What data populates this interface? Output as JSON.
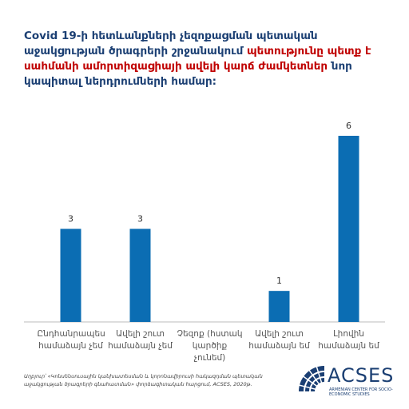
{
  "chart_data": {
    "type": "bar",
    "title": [
      {
        "text": "Covid 19-ի հետևանքների չեզոքացման պետական աջակցության ծրագրերի շրջանակում",
        "color": "#1b3f73"
      },
      {
        "text": "պետությունը պետք է սահմանի ամորտիզացիայի ավելի կարճ ժամկետներ",
        "color": "#c00000"
      },
      {
        "text": "նոր կապիտալ ներդրումների համար:",
        "color": "#1b3f73"
      }
    ],
    "categories": [
      "Ընդհանրապես համաձայն չեմ",
      "Ավելի շուտ համաձայն չեմ",
      "Չեզոք (հստակ կարծիք չունեմ)",
      "Ավելի շուտ համաձայն եմ",
      "Լիովին համաձայն եմ"
    ],
    "values": [
      3,
      3,
      0,
      1,
      6
    ],
    "color": "#0b6db3",
    "ylim": [
      0,
      6
    ],
    "source": "Աղբյուր՝ «Կոնսենսուսային կանխատեսման և կորոնավիրուսի հակազդման պետական աջակցության ծրագրերի գնահատման» փորձագիտական հարցում, ACSES, 2020թ."
  },
  "logo": {
    "name": "ACSES",
    "subtitle": "ARMENIAN CENTER FOR SOCIO-ECONOMIC STUDIES"
  }
}
